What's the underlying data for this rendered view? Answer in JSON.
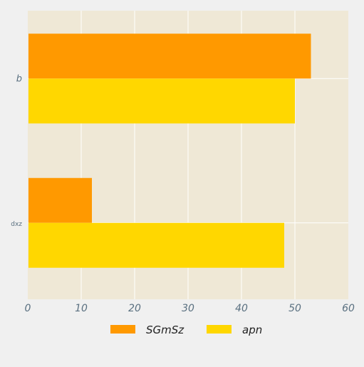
{
  "chart_data": {
    "type": "bar",
    "orientation": "horizontal",
    "categories": [
      "dxz",
      "b"
    ],
    "series": [
      {
        "name": "SGmSz",
        "values": [
          12,
          53
        ],
        "color": "#ff9900"
      },
      {
        "name": "apn",
        "values": [
          48,
          50
        ],
        "color": "#ffd700"
      }
    ],
    "x_ticks": [
      "0",
      "10",
      "20",
      "30",
      "40",
      "50",
      "60"
    ],
    "xlim": [
      0,
      60
    ],
    "grid": true,
    "legend_position": "bottom-center",
    "plot_background": "#efe8d6",
    "page_background": "#f0f0f0"
  }
}
